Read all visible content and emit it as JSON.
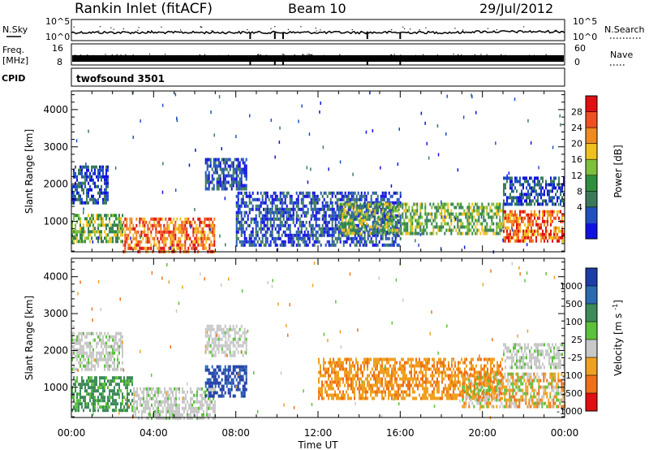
{
  "header": {
    "title": "Rankin Inlet (fitACF)",
    "beam": "Beam 10",
    "date": "29/Jul/2012"
  },
  "strips": {
    "nsky_label": "N.Sky",
    "nsearch_label": "N.Search",
    "noise_ticks_left": [
      "10^5",
      "10^0"
    ],
    "noise_ticks_right": [
      "10^5",
      "10^0"
    ],
    "freq_label": "Freq.",
    "freq_unit": "[MHz]",
    "freq_ticks": [
      "16",
      "8"
    ],
    "nave_label": "Nave",
    "nave_ticks": [
      "60",
      "0"
    ],
    "cpid_label": "CPID",
    "cpid_value": "twofsound 3501"
  },
  "chart_data": [
    {
      "type": "heatmap",
      "panel": "power",
      "title": "",
      "xlabel": "",
      "ylabel": "Slant Range [km]",
      "x_unit": "hours UT",
      "xlim": [
        0,
        24
      ],
      "ylim": [
        180,
        4500
      ],
      "yticks": [
        1000,
        2000,
        3000,
        4000
      ],
      "grid": false,
      "colorbar": {
        "label": "Power [dB]",
        "ticks": [
          "28",
          "24",
          "20",
          "16",
          "12",
          "8",
          "4"
        ],
        "colors": [
          "#1010e0",
          "#2050c0",
          "#3a7a5a",
          "#2e8f3e",
          "#7fc03a",
          "#f0c020",
          "#f08a20",
          "#f05020",
          "#e01010"
        ]
      },
      "regions": [
        {
          "t0": 0.0,
          "t1": 1.8,
          "r0": 1500,
          "r1": 2500,
          "level": "low"
        },
        {
          "t0": 0.0,
          "t1": 2.5,
          "r0": 500,
          "r1": 1200,
          "level": "mid"
        },
        {
          "t0": 2.5,
          "t1": 7.0,
          "r0": 200,
          "r1": 1100,
          "level": "high"
        },
        {
          "t0": 6.5,
          "t1": 8.5,
          "r0": 1900,
          "r1": 2700,
          "level": "low"
        },
        {
          "t0": 8.0,
          "t1": 16.0,
          "r0": 400,
          "r1": 1800,
          "level": "low"
        },
        {
          "t0": 13.0,
          "t1": 21.0,
          "r0": 700,
          "r1": 1500,
          "level": "mid"
        },
        {
          "t0": 21.0,
          "t1": 24.0,
          "r0": 500,
          "r1": 1300,
          "level": "high"
        },
        {
          "t0": 21.0,
          "t1": 24.0,
          "r0": 1500,
          "r1": 2200,
          "level": "low"
        }
      ]
    },
    {
      "type": "heatmap",
      "panel": "velocity",
      "title": "",
      "xlabel": "Time UT",
      "ylabel": "Slant Range [km]",
      "x_unit": "hours UT",
      "xlim": [
        0,
        24
      ],
      "ylim": [
        180,
        4500
      ],
      "yticks": [
        1000,
        2000,
        3000,
        4000
      ],
      "xticks": [
        "00:00",
        "04:00",
        "08:00",
        "12:00",
        "16:00",
        "20:00",
        "00:00"
      ],
      "grid": false,
      "colorbar": {
        "label": "Velocity [m s^-1]",
        "ticks": [
          "1000",
          "500",
          "100",
          "25",
          "-25",
          "-100",
          "-500",
          "-1000"
        ],
        "colors": [
          "#1c3ca8",
          "#2a6ab0",
          "#3d8a5a",
          "#5bc23a",
          "#c8c8c8",
          "#f0a020",
          "#f07018",
          "#e01010"
        ]
      },
      "regions": [
        {
          "t0": 0.0,
          "t1": 2.5,
          "r0": 1500,
          "r1": 2500,
          "level": "ground"
        },
        {
          "t0": 0.0,
          "t1": 3.0,
          "r0": 400,
          "r1": 1300,
          "level": "toward"
        },
        {
          "t0": 3.0,
          "t1": 7.0,
          "r0": 200,
          "r1": 1000,
          "level": "ground"
        },
        {
          "t0": 6.5,
          "t1": 8.5,
          "r0": 1900,
          "r1": 2700,
          "level": "ground"
        },
        {
          "t0": 6.5,
          "t1": 8.5,
          "r0": 800,
          "r1": 1600,
          "level": "fast_toward"
        },
        {
          "t0": 12.0,
          "t1": 21.0,
          "r0": 700,
          "r1": 1800,
          "level": "away"
        },
        {
          "t0": 19.0,
          "t1": 24.0,
          "r0": 500,
          "r1": 1400,
          "level": "mixed"
        },
        {
          "t0": 21.0,
          "t1": 24.0,
          "r0": 1500,
          "r1": 2200,
          "level": "ground"
        }
      ]
    }
  ]
}
